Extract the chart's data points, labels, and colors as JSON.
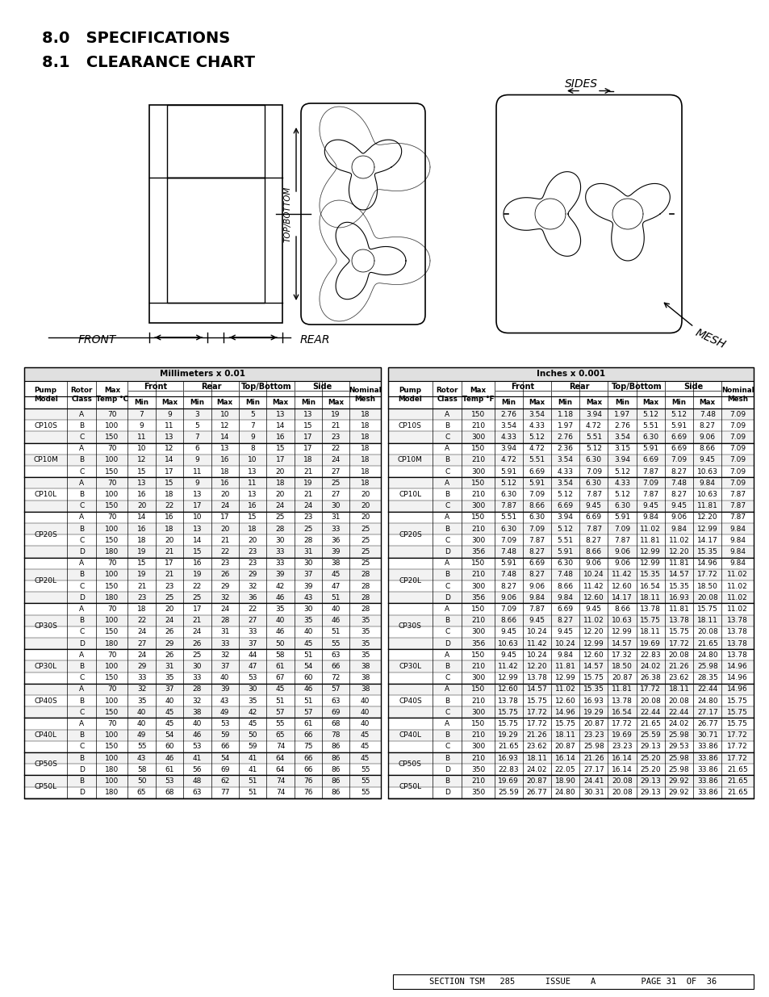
{
  "title1": "8.0   SPECIFICATIONS",
  "title2": "8.1   CLEARANCE CHART",
  "mm_table_header": "Millimeters x 0.01",
  "in_table_header": "Inches x 0.001",
  "mm_data": [
    [
      "CP10S",
      "A",
      "70",
      "7",
      "9",
      "3",
      "10",
      "5",
      "13",
      "13",
      "19",
      "18"
    ],
    [
      "CP10S",
      "B",
      "100",
      "9",
      "11",
      "5",
      "12",
      "7",
      "14",
      "15",
      "21",
      "18"
    ],
    [
      "CP10S",
      "C",
      "150",
      "11",
      "13",
      "7",
      "14",
      "9",
      "16",
      "17",
      "23",
      "18"
    ],
    [
      "CP10M",
      "A",
      "70",
      "10",
      "12",
      "6",
      "13",
      "8",
      "15",
      "17",
      "22",
      "18"
    ],
    [
      "CP10M",
      "B",
      "100",
      "12",
      "14",
      "9",
      "16",
      "10",
      "17",
      "18",
      "24",
      "18"
    ],
    [
      "CP10M",
      "C",
      "150",
      "15",
      "17",
      "11",
      "18",
      "13",
      "20",
      "21",
      "27",
      "18"
    ],
    [
      "CP10L",
      "A",
      "70",
      "13",
      "15",
      "9",
      "16",
      "11",
      "18",
      "19",
      "25",
      "18"
    ],
    [
      "CP10L",
      "B",
      "100",
      "16",
      "18",
      "13",
      "20",
      "13",
      "20",
      "21",
      "27",
      "20"
    ],
    [
      "CP10L",
      "C",
      "150",
      "20",
      "22",
      "17",
      "24",
      "16",
      "24",
      "24",
      "30",
      "20"
    ],
    [
      "CP20S",
      "A",
      "70",
      "14",
      "16",
      "10",
      "17",
      "15",
      "25",
      "23",
      "31",
      "20"
    ],
    [
      "CP20S",
      "B",
      "100",
      "16",
      "18",
      "13",
      "20",
      "18",
      "28",
      "25",
      "33",
      "25"
    ],
    [
      "CP20S",
      "C",
      "150",
      "18",
      "20",
      "14",
      "21",
      "20",
      "30",
      "28",
      "36",
      "25"
    ],
    [
      "CP20S",
      "D",
      "180",
      "19",
      "21",
      "15",
      "22",
      "23",
      "33",
      "31",
      "39",
      "25"
    ],
    [
      "CP20L",
      "A",
      "70",
      "15",
      "17",
      "16",
      "23",
      "23",
      "33",
      "30",
      "38",
      "25"
    ],
    [
      "CP20L",
      "B",
      "100",
      "19",
      "21",
      "19",
      "26",
      "29",
      "39",
      "37",
      "45",
      "28"
    ],
    [
      "CP20L",
      "C",
      "150",
      "21",
      "23",
      "22",
      "29",
      "32",
      "42",
      "39",
      "47",
      "28"
    ],
    [
      "CP20L",
      "D",
      "180",
      "23",
      "25",
      "25",
      "32",
      "36",
      "46",
      "43",
      "51",
      "28"
    ],
    [
      "CP30S",
      "A",
      "70",
      "18",
      "20",
      "17",
      "24",
      "22",
      "35",
      "30",
      "40",
      "28"
    ],
    [
      "CP30S",
      "B",
      "100",
      "22",
      "24",
      "21",
      "28",
      "27",
      "40",
      "35",
      "46",
      "35"
    ],
    [
      "CP30S",
      "C",
      "150",
      "24",
      "26",
      "24",
      "31",
      "33",
      "46",
      "40",
      "51",
      "35"
    ],
    [
      "CP30S",
      "D",
      "180",
      "27",
      "29",
      "26",
      "33",
      "37",
      "50",
      "45",
      "55",
      "35"
    ],
    [
      "CP30L",
      "A",
      "70",
      "24",
      "26",
      "25",
      "32",
      "44",
      "58",
      "51",
      "63",
      "35"
    ],
    [
      "CP30L",
      "B",
      "100",
      "29",
      "31",
      "30",
      "37",
      "47",
      "61",
      "54",
      "66",
      "38"
    ],
    [
      "CP30L",
      "C",
      "150",
      "33",
      "35",
      "33",
      "40",
      "53",
      "67",
      "60",
      "72",
      "38"
    ],
    [
      "CP40S",
      "A",
      "70",
      "32",
      "37",
      "28",
      "39",
      "30",
      "45",
      "46",
      "57",
      "38"
    ],
    [
      "CP40S",
      "B",
      "100",
      "35",
      "40",
      "32",
      "43",
      "35",
      "51",
      "51",
      "63",
      "40"
    ],
    [
      "CP40S",
      "C",
      "150",
      "40",
      "45",
      "38",
      "49",
      "42",
      "57",
      "57",
      "69",
      "40"
    ],
    [
      "CP40L",
      "A",
      "70",
      "40",
      "45",
      "40",
      "53",
      "45",
      "55",
      "61",
      "68",
      "40"
    ],
    [
      "CP40L",
      "B",
      "100",
      "49",
      "54",
      "46",
      "59",
      "50",
      "65",
      "66",
      "78",
      "45"
    ],
    [
      "CP40L",
      "C",
      "150",
      "55",
      "60",
      "53",
      "66",
      "59",
      "74",
      "75",
      "86",
      "45"
    ],
    [
      "CP50S",
      "B",
      "100",
      "43",
      "46",
      "41",
      "54",
      "41",
      "64",
      "66",
      "86",
      "45"
    ],
    [
      "CP50S",
      "D",
      "180",
      "58",
      "61",
      "56",
      "69",
      "41",
      "64",
      "66",
      "86",
      "55"
    ],
    [
      "CP50L",
      "B",
      "100",
      "50",
      "53",
      "48",
      "62",
      "51",
      "74",
      "76",
      "86",
      "55"
    ],
    [
      "CP50L",
      "D",
      "180",
      "65",
      "68",
      "63",
      "77",
      "51",
      "74",
      "76",
      "86",
      "55"
    ]
  ],
  "in_data": [
    [
      "CP10S",
      "A",
      "150",
      "2.76",
      "3.54",
      "1.18",
      "3.94",
      "1.97",
      "5.12",
      "5.12",
      "7.48",
      "7.09"
    ],
    [
      "CP10S",
      "B",
      "210",
      "3.54",
      "4.33",
      "1.97",
      "4.72",
      "2.76",
      "5.51",
      "5.91",
      "8.27",
      "7.09"
    ],
    [
      "CP10S",
      "C",
      "300",
      "4.33",
      "5.12",
      "2.76",
      "5.51",
      "3.54",
      "6.30",
      "6.69",
      "9.06",
      "7.09"
    ],
    [
      "CP10M",
      "A",
      "150",
      "3.94",
      "4.72",
      "2.36",
      "5.12",
      "3.15",
      "5.91",
      "6.69",
      "8.66",
      "7.09"
    ],
    [
      "CP10M",
      "B",
      "210",
      "4.72",
      "5.51",
      "3.54",
      "6.30",
      "3.94",
      "6.69",
      "7.09",
      "9.45",
      "7.09"
    ],
    [
      "CP10M",
      "C",
      "300",
      "5.91",
      "6.69",
      "4.33",
      "7.09",
      "5.12",
      "7.87",
      "8.27",
      "10.63",
      "7.09"
    ],
    [
      "CP10L",
      "A",
      "150",
      "5.12",
      "5.91",
      "3.54",
      "6.30",
      "4.33",
      "7.09",
      "7.48",
      "9.84",
      "7.09"
    ],
    [
      "CP10L",
      "B",
      "210",
      "6.30",
      "7.09",
      "5.12",
      "7.87",
      "5.12",
      "7.87",
      "8.27",
      "10.63",
      "7.87"
    ],
    [
      "CP10L",
      "C",
      "300",
      "7.87",
      "8.66",
      "6.69",
      "9.45",
      "6.30",
      "9.45",
      "9.45",
      "11.81",
      "7.87"
    ],
    [
      "CP20S",
      "A",
      "150",
      "5.51",
      "6.30",
      "3.94",
      "6.69",
      "5.91",
      "9.84",
      "9.06",
      "12.20",
      "7.87"
    ],
    [
      "CP20S",
      "B",
      "210",
      "6.30",
      "7.09",
      "5.12",
      "7.87",
      "7.09",
      "11.02",
      "9.84",
      "12.99",
      "9.84"
    ],
    [
      "CP20S",
      "C",
      "300",
      "7.09",
      "7.87",
      "5.51",
      "8.27",
      "7.87",
      "11.81",
      "11.02",
      "14.17",
      "9.84"
    ],
    [
      "CP20S",
      "D",
      "356",
      "7.48",
      "8.27",
      "5.91",
      "8.66",
      "9.06",
      "12.99",
      "12.20",
      "15.35",
      "9.84"
    ],
    [
      "CP20L",
      "A",
      "150",
      "5.91",
      "6.69",
      "6.30",
      "9.06",
      "9.06",
      "12.99",
      "11.81",
      "14.96",
      "9.84"
    ],
    [
      "CP20L",
      "B",
      "210",
      "7.48",
      "8.27",
      "7.48",
      "10.24",
      "11.42",
      "15.35",
      "14.57",
      "17.72",
      "11.02"
    ],
    [
      "CP20L",
      "C",
      "300",
      "8.27",
      "9.06",
      "8.66",
      "11.42",
      "12.60",
      "16.54",
      "15.35",
      "18.50",
      "11.02"
    ],
    [
      "CP20L",
      "D",
      "356",
      "9.06",
      "9.84",
      "9.84",
      "12.60",
      "14.17",
      "18.11",
      "16.93",
      "20.08",
      "11.02"
    ],
    [
      "CP30S",
      "A",
      "150",
      "7.09",
      "7.87",
      "6.69",
      "9.45",
      "8.66",
      "13.78",
      "11.81",
      "15.75",
      "11.02"
    ],
    [
      "CP30S",
      "B",
      "210",
      "8.66",
      "9.45",
      "8.27",
      "11.02",
      "10.63",
      "15.75",
      "13.78",
      "18.11",
      "13.78"
    ],
    [
      "CP30S",
      "C",
      "300",
      "9.45",
      "10.24",
      "9.45",
      "12.20",
      "12.99",
      "18.11",
      "15.75",
      "20.08",
      "13.78"
    ],
    [
      "CP30S",
      "D",
      "356",
      "10.63",
      "11.42",
      "10.24",
      "12.99",
      "14.57",
      "19.69",
      "17.72",
      "21.65",
      "13.78"
    ],
    [
      "CP30L",
      "A",
      "150",
      "9.45",
      "10.24",
      "9.84",
      "12.60",
      "17.32",
      "22.83",
      "20.08",
      "24.80",
      "13.78"
    ],
    [
      "CP30L",
      "B",
      "210",
      "11.42",
      "12.20",
      "11.81",
      "14.57",
      "18.50",
      "24.02",
      "21.26",
      "25.98",
      "14.96"
    ],
    [
      "CP30L",
      "C",
      "300",
      "12.99",
      "13.78",
      "12.99",
      "15.75",
      "20.87",
      "26.38",
      "23.62",
      "28.35",
      "14.96"
    ],
    [
      "CP40S",
      "A",
      "150",
      "12.60",
      "14.57",
      "11.02",
      "15.35",
      "11.81",
      "17.72",
      "18.11",
      "22.44",
      "14.96"
    ],
    [
      "CP40S",
      "B",
      "210",
      "13.78",
      "15.75",
      "12.60",
      "16.93",
      "13.78",
      "20.08",
      "20.08",
      "24.80",
      "15.75"
    ],
    [
      "CP40S",
      "C",
      "300",
      "15.75",
      "17.72",
      "14.96",
      "19.29",
      "16.54",
      "22.44",
      "22.44",
      "27.17",
      "15.75"
    ],
    [
      "CP40L",
      "A",
      "150",
      "15.75",
      "17.72",
      "15.75",
      "20.87",
      "17.72",
      "21.65",
      "24.02",
      "26.77",
      "15.75"
    ],
    [
      "CP40L",
      "B",
      "210",
      "19.29",
      "21.26",
      "18.11",
      "23.23",
      "19.69",
      "25.59",
      "25.98",
      "30.71",
      "17.72"
    ],
    [
      "CP40L",
      "C",
      "300",
      "21.65",
      "23.62",
      "20.87",
      "25.98",
      "23.23",
      "29.13",
      "29.53",
      "33.86",
      "17.72"
    ],
    [
      "CP50S",
      "B",
      "210",
      "16.93",
      "18.11",
      "16.14",
      "21.26",
      "16.14",
      "25.20",
      "25.98",
      "33.86",
      "17.72"
    ],
    [
      "CP50S",
      "D",
      "350",
      "22.83",
      "24.02",
      "22.05",
      "27.17",
      "16.14",
      "25.20",
      "25.98",
      "33.86",
      "21.65"
    ],
    [
      "CP50L",
      "B",
      "210",
      "19.69",
      "20.87",
      "18.90",
      "24.41",
      "20.08",
      "29.13",
      "29.92",
      "33.86",
      "21.65"
    ],
    [
      "CP50L",
      "D",
      "350",
      "25.59",
      "26.77",
      "24.80",
      "30.31",
      "20.08",
      "29.13",
      "29.92",
      "33.86",
      "21.65"
    ]
  ],
  "footer": "SECTION TSM   285      ISSUE    A         PAGE 31  OF  36",
  "bg_color": "#ffffff"
}
